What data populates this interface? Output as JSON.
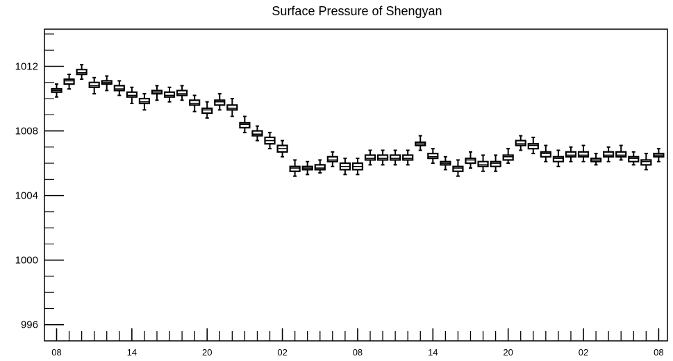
{
  "chart_data": {
    "type": "box",
    "title": "Surface Pressure of Shengyan",
    "xlabel": "",
    "ylabel": "",
    "ylim": [
      995,
      1014.3
    ],
    "y_ticks": [
      996,
      1000,
      1004,
      1008,
      1012
    ],
    "x_tick_labels": [
      "08",
      "14",
      "20",
      "02",
      "08",
      "14",
      "20",
      "02",
      "08"
    ],
    "grid": false,
    "colors": {
      "box_fill": "#ffffff",
      "stroke": "#000000"
    },
    "boxes": [
      {
        "x": 0,
        "whisker_low": 1010.1,
        "q1": 1010.4,
        "median": 1010.5,
        "q3": 1010.6,
        "whisker_high": 1010.9
      },
      {
        "x": 1,
        "whisker_low": 1010.6,
        "q1": 1010.9,
        "median": 1011.1,
        "q3": 1011.2,
        "whisker_high": 1011.5
      },
      {
        "x": 2,
        "whisker_low": 1011.2,
        "q1": 1011.5,
        "median": 1011.6,
        "q3": 1011.8,
        "whisker_high": 1012.1
      },
      {
        "x": 3,
        "whisker_low": 1010.3,
        "q1": 1010.7,
        "median": 1010.8,
        "q3": 1011.0,
        "whisker_high": 1011.3
      },
      {
        "x": 4,
        "whisker_low": 1010.5,
        "q1": 1010.9,
        "median": 1011.0,
        "q3": 1011.1,
        "whisker_high": 1011.4
      },
      {
        "x": 5,
        "whisker_low": 1010.2,
        "q1": 1010.5,
        "median": 1010.6,
        "q3": 1010.8,
        "whisker_high": 1011.1
      },
      {
        "x": 6,
        "whisker_low": 1009.7,
        "q1": 1010.1,
        "median": 1010.2,
        "q3": 1010.4,
        "whisker_high": 1010.7
      },
      {
        "x": 7,
        "whisker_low": 1009.3,
        "q1": 1009.7,
        "median": 1009.8,
        "q3": 1010.0,
        "whisker_high": 1010.3
      },
      {
        "x": 8,
        "whisker_low": 1009.9,
        "q1": 1010.3,
        "median": 1010.4,
        "q3": 1010.5,
        "whisker_high": 1010.8
      },
      {
        "x": 9,
        "whisker_low": 1009.8,
        "q1": 1010.1,
        "median": 1010.2,
        "q3": 1010.4,
        "whisker_high": 1010.7
      },
      {
        "x": 10,
        "whisker_low": 1009.9,
        "q1": 1010.2,
        "median": 1010.3,
        "q3": 1010.5,
        "whisker_high": 1010.8
      },
      {
        "x": 11,
        "whisker_low": 1009.2,
        "q1": 1009.6,
        "median": 1009.7,
        "q3": 1009.9,
        "whisker_high": 1010.2
      },
      {
        "x": 12,
        "whisker_low": 1008.8,
        "q1": 1009.1,
        "median": 1009.3,
        "q3": 1009.4,
        "whisker_high": 1009.8
      },
      {
        "x": 13,
        "whisker_low": 1009.3,
        "q1": 1009.6,
        "median": 1009.8,
        "q3": 1009.9,
        "whisker_high": 1010.3
      },
      {
        "x": 14,
        "whisker_low": 1008.9,
        "q1": 1009.3,
        "median": 1009.4,
        "q3": 1009.6,
        "whisker_high": 1010.0
      },
      {
        "x": 15,
        "whisker_low": 1007.9,
        "q1": 1008.2,
        "median": 1008.4,
        "q3": 1008.5,
        "whisker_high": 1008.9
      },
      {
        "x": 16,
        "whisker_low": 1007.4,
        "q1": 1007.7,
        "median": 1007.8,
        "q3": 1008.0,
        "whisker_high": 1008.3
      },
      {
        "x": 17,
        "whisker_low": 1006.9,
        "q1": 1007.2,
        "median": 1007.4,
        "q3": 1007.6,
        "whisker_high": 1007.9
      },
      {
        "x": 18,
        "whisker_low": 1006.4,
        "q1": 1006.7,
        "median": 1006.9,
        "q3": 1007.1,
        "whisker_high": 1007.4
      },
      {
        "x": 19,
        "whisker_low": 1005.2,
        "q1": 1005.5,
        "median": 1005.7,
        "q3": 1005.8,
        "whisker_high": 1006.2
      },
      {
        "x": 20,
        "whisker_low": 1005.3,
        "q1": 1005.6,
        "median": 1005.7,
        "q3": 1005.8,
        "whisker_high": 1006.1
      },
      {
        "x": 21,
        "whisker_low": 1005.4,
        "q1": 1005.6,
        "median": 1005.7,
        "q3": 1005.9,
        "whisker_high": 1006.2
      },
      {
        "x": 22,
        "whisker_low": 1005.8,
        "q1": 1006.1,
        "median": 1006.2,
        "q3": 1006.4,
        "whisker_high": 1006.7
      },
      {
        "x": 23,
        "whisker_low": 1005.3,
        "q1": 1005.6,
        "median": 1005.8,
        "q3": 1006.0,
        "whisker_high": 1006.3
      },
      {
        "x": 24,
        "whisker_low": 1005.3,
        "q1": 1005.6,
        "median": 1005.8,
        "q3": 1006.0,
        "whisker_high": 1006.3
      },
      {
        "x": 25,
        "whisker_low": 1005.9,
        "q1": 1006.2,
        "median": 1006.3,
        "q3": 1006.5,
        "whisker_high": 1006.8
      },
      {
        "x": 26,
        "whisker_low": 1005.9,
        "q1": 1006.2,
        "median": 1006.3,
        "q3": 1006.5,
        "whisker_high": 1006.8
      },
      {
        "x": 27,
        "whisker_low": 1005.9,
        "q1": 1006.2,
        "median": 1006.3,
        "q3": 1006.5,
        "whisker_high": 1006.8
      },
      {
        "x": 28,
        "whisker_low": 1005.9,
        "q1": 1006.2,
        "median": 1006.3,
        "q3": 1006.5,
        "whisker_high": 1006.8
      },
      {
        "x": 29,
        "whisker_low": 1006.8,
        "q1": 1007.1,
        "median": 1007.2,
        "q3": 1007.3,
        "whisker_high": 1007.7
      },
      {
        "x": 30,
        "whisker_low": 1006.0,
        "q1": 1006.3,
        "median": 1006.4,
        "q3": 1006.6,
        "whisker_high": 1006.9
      },
      {
        "x": 31,
        "whisker_low": 1005.6,
        "q1": 1005.9,
        "median": 1006.0,
        "q3": 1006.1,
        "whisker_high": 1006.4
      },
      {
        "x": 32,
        "whisker_low": 1005.2,
        "q1": 1005.5,
        "median": 1005.7,
        "q3": 1005.8,
        "whisker_high": 1006.2
      },
      {
        "x": 33,
        "whisker_low": 1005.7,
        "q1": 1006.0,
        "median": 1006.2,
        "q3": 1006.3,
        "whisker_high": 1006.7
      },
      {
        "x": 34,
        "whisker_low": 1005.5,
        "q1": 1005.8,
        "median": 1005.9,
        "q3": 1006.1,
        "whisker_high": 1006.5
      },
      {
        "x": 35,
        "whisker_low": 1005.5,
        "q1": 1005.8,
        "median": 1006.0,
        "q3": 1006.1,
        "whisker_high": 1006.5
      },
      {
        "x": 36,
        "whisker_low": 1006.0,
        "q1": 1006.2,
        "median": 1006.4,
        "q3": 1006.5,
        "whisker_high": 1006.9
      },
      {
        "x": 37,
        "whisker_low": 1006.8,
        "q1": 1007.1,
        "median": 1007.2,
        "q3": 1007.4,
        "whisker_high": 1007.7
      },
      {
        "x": 38,
        "whisker_low": 1006.6,
        "q1": 1006.9,
        "median": 1007.1,
        "q3": 1007.2,
        "whisker_high": 1007.6
      },
      {
        "x": 39,
        "whisker_low": 1006.1,
        "q1": 1006.4,
        "median": 1006.6,
        "q3": 1006.7,
        "whisker_high": 1007.1
      },
      {
        "x": 40,
        "whisker_low": 1005.8,
        "q1": 1006.1,
        "median": 1006.3,
        "q3": 1006.4,
        "whisker_high": 1006.8
      },
      {
        "x": 41,
        "whisker_low": 1006.1,
        "q1": 1006.4,
        "median": 1006.5,
        "q3": 1006.7,
        "whisker_high": 1007.0
      },
      {
        "x": 42,
        "whisker_low": 1006.1,
        "q1": 1006.4,
        "median": 1006.5,
        "q3": 1006.7,
        "whisker_high": 1007.1
      },
      {
        "x": 43,
        "whisker_low": 1005.9,
        "q1": 1006.1,
        "median": 1006.2,
        "q3": 1006.3,
        "whisker_high": 1006.6
      },
      {
        "x": 44,
        "whisker_low": 1006.1,
        "q1": 1006.4,
        "median": 1006.5,
        "q3": 1006.7,
        "whisker_high": 1007.0
      },
      {
        "x": 45,
        "whisker_low": 1006.2,
        "q1": 1006.4,
        "median": 1006.5,
        "q3": 1006.7,
        "whisker_high": 1007.1
      },
      {
        "x": 46,
        "whisker_low": 1005.9,
        "q1": 1006.1,
        "median": 1006.3,
        "q3": 1006.4,
        "whisker_high": 1006.7
      },
      {
        "x": 47,
        "whisker_low": 1005.6,
        "q1": 1005.9,
        "median": 1006.1,
        "q3": 1006.2,
        "whisker_high": 1006.6
      },
      {
        "x": 48,
        "whisker_low": 1006.1,
        "q1": 1006.4,
        "median": 1006.5,
        "q3": 1006.6,
        "whisker_high": 1006.9
      }
    ]
  }
}
